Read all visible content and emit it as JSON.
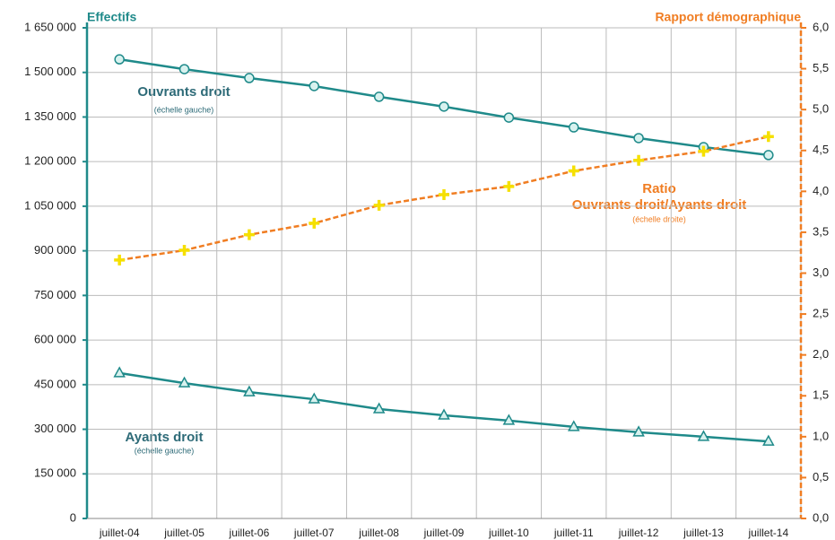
{
  "chart_data": {
    "type": "line",
    "y_title": "Effectifs",
    "y2_title": "Rapport démographique",
    "annotations": [
      "Ouvrants droit",
      "(échelle gauche)",
      "Ayants droit",
      "(échelle gauche)",
      "Ratio",
      "Ouvrants droit/Ayants droit",
      "(échelle droite)"
    ],
    "categories": [
      "juillet-04",
      "juillet-05",
      "juillet-06",
      "juillet-07",
      "juillet-08",
      "juillet-09",
      "juillet-10",
      "juillet-11",
      "juillet-12",
      "juillet-13",
      "juillet-14"
    ],
    "series": [
      {
        "name": "Ouvrants droit",
        "color": "#1f8a8a",
        "marker": "circle",
        "values": [
          1544000,
          1511000,
          1481000,
          1454000,
          1418000,
          1385000,
          1348000,
          1315000,
          1279000,
          1249000,
          1222000
        ]
      },
      {
        "name": "Ayants droit",
        "color": "#1f8a8a",
        "marker": "triangle",
        "values": [
          489000,
          455000,
          425000,
          401000,
          368000,
          347000,
          329000,
          308000,
          290000,
          275000,
          259000
        ]
      },
      {
        "name": "Ratio Ouvrants droit/Ayants droit",
        "color": "#f07d22",
        "marker": "plus",
        "dashed": true,
        "axis": "y2",
        "values": [
          3.16,
          3.28,
          3.47,
          3.61,
          3.83,
          3.96,
          4.06,
          4.25,
          4.38,
          4.49,
          4.67
        ]
      }
    ],
    "ylim": [
      0,
      1650000
    ],
    "yticks": [
      0,
      {
        "value": 150000,
        "label": "150 000"
      },
      {
        "value": 300000,
        "label": "300 000"
      },
      {
        "value": 450000,
        "label": "450 000"
      },
      {
        "value": 600000,
        "label": "600 000"
      },
      {
        "value": 750000,
        "label": "750 000"
      },
      {
        "value": 900000,
        "label": "900 000"
      },
      {
        "value": 1050000,
        "label": "1 050 000"
      },
      {
        "value": 1200000,
        "label": "1 200 000"
      },
      {
        "value": 1350000,
        "label": "1 350 000"
      },
      {
        "value": 1500000,
        "label": "1 500 000"
      },
      {
        "value": 1650000,
        "label": "1 650 000"
      }
    ],
    "y2lim": [
      0,
      6
    ],
    "y2ticks": [
      {
        "value": 0,
        "label": "0,0"
      },
      {
        "value": 0.5,
        "label": "0,5"
      },
      {
        "value": 1,
        "label": "1,0"
      },
      {
        "value": 1.5,
        "label": "1,5"
      },
      {
        "value": 2,
        "label": "2,0"
      },
      {
        "value": 2.5,
        "label": "2,5"
      },
      {
        "value": 3,
        "label": "3,0"
      },
      {
        "value": 3.5,
        "label": "3,5"
      },
      {
        "value": 4,
        "label": "4,0"
      },
      {
        "value": 4.5,
        "label": "4,5"
      },
      {
        "value": 5,
        "label": "5,0"
      },
      {
        "value": 5.5,
        "label": "5,5"
      },
      {
        "value": 6,
        "label": "6,0"
      }
    ],
    "grid": true
  }
}
